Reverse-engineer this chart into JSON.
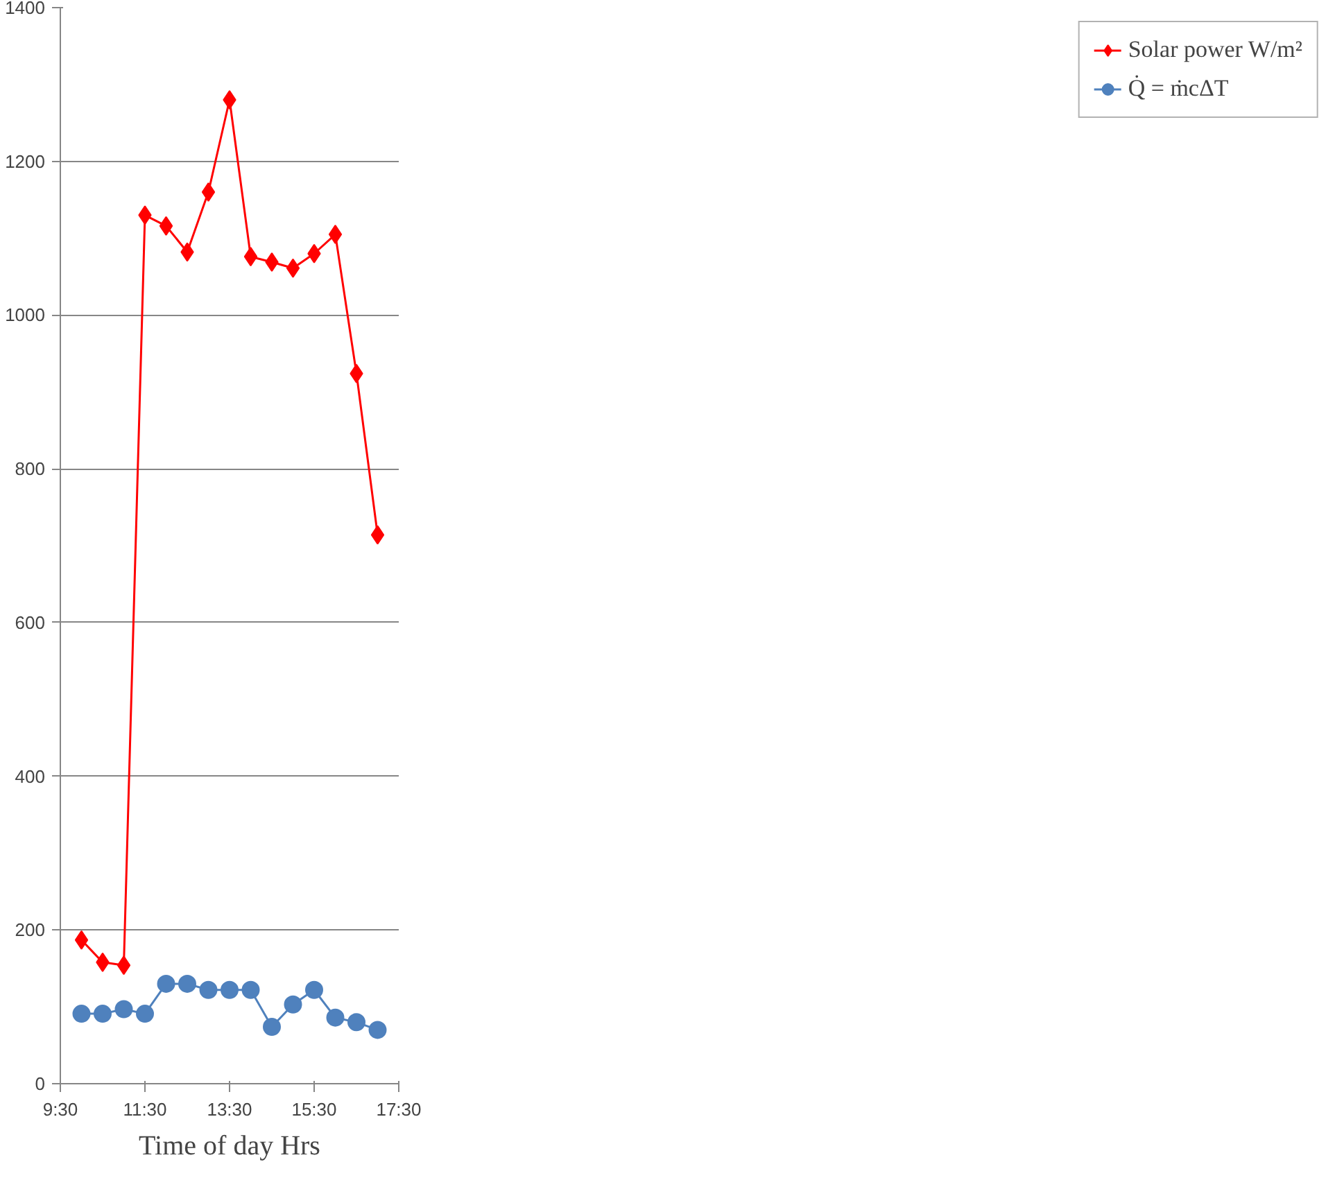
{
  "chart_data": {
    "type": "line",
    "xlabel": "Time of day Hrs",
    "x": [
      10,
      10.5,
      11,
      11.5,
      12,
      12.5,
      13,
      13.5,
      14,
      14.5,
      15,
      15.5,
      16,
      16.5,
      17
    ],
    "series": [
      {
        "name": "Solar power W/m²",
        "color": "#ff0000",
        "marker": "diamond",
        "values": [
          187,
          158,
          154,
          1130,
          1116,
          1082,
          1160,
          1280,
          1076,
          1069,
          1061,
          1080,
          1105,
          924,
          714
        ]
      },
      {
        "name": "Q̇ = ṁcΔT",
        "color": "#4f81bd",
        "marker": "circle",
        "values": [
          91,
          91,
          97,
          91,
          130,
          130,
          122,
          122,
          122,
          74,
          103,
          122,
          86,
          80,
          70
        ]
      }
    ],
    "xlim": [
      9.5,
      17.5
    ],
    "ylim": [
      0,
      1400
    ],
    "xticks": [
      {
        "value": 9.5,
        "label": "9:30"
      },
      {
        "value": 11.5,
        "label": "11:30"
      },
      {
        "value": 13.5,
        "label": "13:30"
      },
      {
        "value": 15.5,
        "label": "15:30"
      },
      {
        "value": 17.5,
        "label": "17:30"
      }
    ],
    "yticks": [
      0,
      200,
      400,
      600,
      800,
      1000,
      1200,
      1400
    ],
    "grid": "y",
    "legend": "right"
  }
}
